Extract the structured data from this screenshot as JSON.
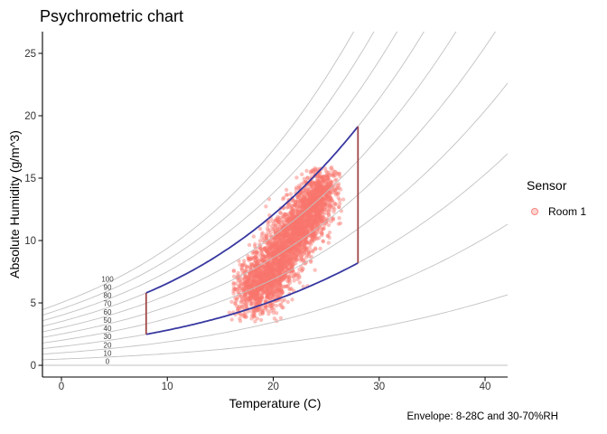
{
  "chart_data": {
    "type": "scatter",
    "title": "Psychrometric chart",
    "xlabel": "Temperature (C)",
    "ylabel": "Absolute Humidity (g/m^3)",
    "caption": "Envelope: 8-28C and 30-70%RH",
    "xlim": [
      -1.79,
      42.13
    ],
    "ylim": [
      -0.94,
      26.74
    ],
    "xticks": [
      0,
      10,
      20,
      30,
      40
    ],
    "yticks": [
      0,
      5,
      10,
      15,
      20,
      25
    ],
    "grid": false,
    "axis_color": "#000000",
    "tick_label_color": "#333333",
    "legend": {
      "title": "Sensor",
      "position": "right",
      "items": [
        {
          "label": "Room 1",
          "color": "#F8766D"
        }
      ]
    },
    "rh_curves": {
      "levels": [
        0,
        10,
        20,
        30,
        40,
        50,
        60,
        70,
        80,
        90,
        100
      ],
      "label_temperature_c": 4.35,
      "saturation_poly_g_m3": [
        5.018,
        0.32321,
        0.0081847,
        0.00031243
      ],
      "color": "#C2C2C2",
      "label_color": "#3A3A3A"
    },
    "envelope": {
      "temperature_range_c": [
        8,
        28
      ],
      "rh_range_pct": [
        30,
        70
      ],
      "curve_color": "#3838A0",
      "side_color": "#A04848"
    },
    "series": [
      {
        "name": "Room 1",
        "color": "#F8766D",
        "point_radius": 2.2,
        "point_opacity": 0.45,
        "seed": 20240613,
        "approx_bounds": {
          "t_c": [
            15.7,
            26.7
          ],
          "ah_g_m3": [
            3.5,
            15.9
          ]
        },
        "clusters": [
          {
            "n": 1100,
            "t_mean": 19.0,
            "ah_mean": 6.8,
            "t_sd": 1.3,
            "ah_sd": 1.4,
            "corr": 0.35
          },
          {
            "n": 900,
            "t_mean": 21.2,
            "ah_mean": 9.5,
            "t_sd": 1.2,
            "ah_sd": 1.6,
            "corr": 0.45
          },
          {
            "n": 1100,
            "t_mean": 23.5,
            "ah_mean": 12.3,
            "t_sd": 1.2,
            "ah_sd": 1.6,
            "corr": 0.45
          },
          {
            "n": 160,
            "t_mean": 24.6,
            "ah_mean": 14.2,
            "t_sd": 0.8,
            "ah_sd": 0.8,
            "corr": 0.3
          }
        ]
      }
    ]
  }
}
